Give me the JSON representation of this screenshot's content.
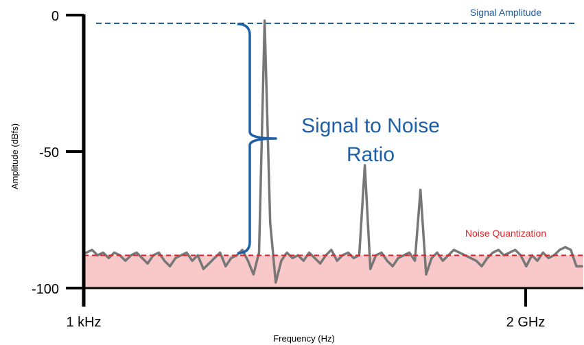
{
  "chart_data": {
    "type": "line",
    "xlabel": "Frequency (Hz)",
    "ylabel": "Amplitude (dBfs)",
    "ylim": [
      -100,
      0
    ],
    "x_ticks": [
      "1 kHz",
      "2 GHz"
    ],
    "y_ticks": [
      0,
      -50,
      -100
    ],
    "signal_amplitude_dbfs": -3,
    "noise_quantization_dbfs": -88,
    "annotations": {
      "signal_level": "Signal Amplitude",
      "noise_level": "Noise Quantization",
      "snr_line1": "Signal to Noise",
      "snr_line2": "Ratio"
    },
    "spectrum_dbfs": [
      -87,
      -86,
      -88,
      -87,
      -89,
      -87,
      -88,
      -90,
      -88,
      -87,
      -89,
      -91,
      -88,
      -87,
      -90,
      -92,
      -89,
      -88,
      -87,
      -90,
      -88,
      -93,
      -91,
      -89,
      -87,
      -92,
      -89,
      -88,
      -86,
      -90,
      -95,
      -87,
      -2,
      -76,
      -98,
      -90,
      -87,
      -89,
      -88,
      -90,
      -87,
      -89,
      -91,
      -88,
      -86,
      -90,
      -88,
      -87,
      -89,
      -88,
      -55,
      -93,
      -88,
      -87,
      -90,
      -92,
      -89,
      -88,
      -87,
      -90,
      -64,
      -95,
      -89,
      -87,
      -90,
      -88,
      -86,
      -87,
      -88,
      -89,
      -90,
      -92,
      -89,
      -87,
      -86,
      -88,
      -87,
      -86,
      -88,
      -92,
      -88,
      -90,
      -87,
      -89,
      -88,
      -86,
      -85,
      -86,
      -92,
      -92
    ]
  },
  "colors": {
    "signal_curve": "#777777",
    "signal_line": "#1f5fa6",
    "noise_line": "#e4232a",
    "noise_band": "#f9c8c8",
    "axis": "#000000"
  }
}
